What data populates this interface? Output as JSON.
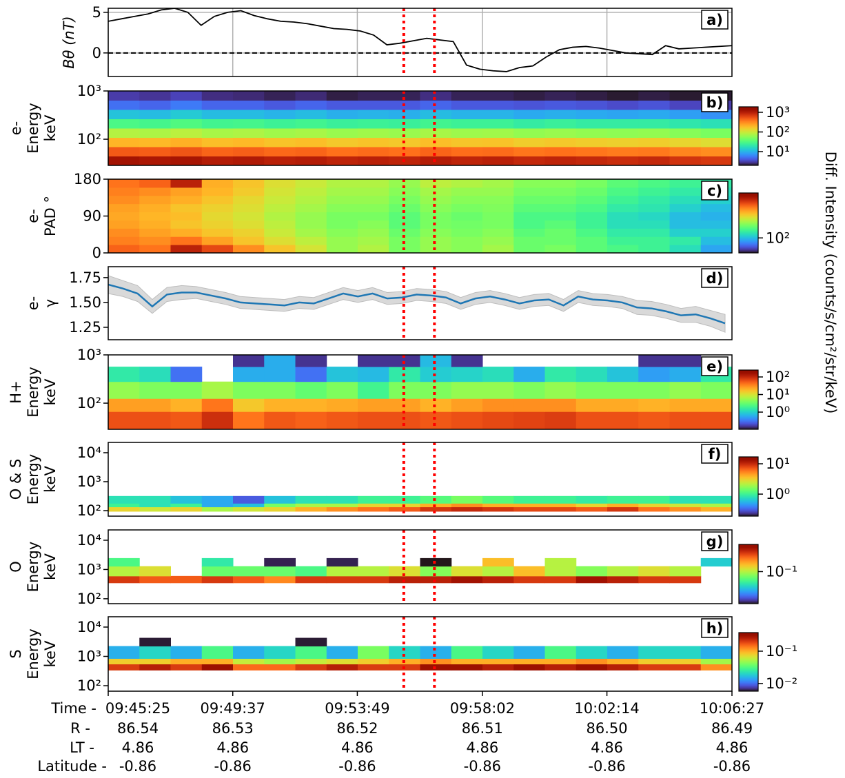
{
  "colorbar_label": "Diff. Intensity (counts/s/cm²/str/keV)",
  "chart_data": [
    {
      "type": "line",
      "panel_label": "a)",
      "ylabel": [
        "Bθ (nT)"
      ],
      "xlim": [
        "09:45:25",
        "10:06:27"
      ],
      "xticks": [
        "09:45:25",
        "09:49:37",
        "09:53:49",
        "09:58:02",
        "10:02:14",
        "10:06:27"
      ],
      "ylim": [
        -2.9,
        5.5
      ],
      "yticks": [
        0,
        5
      ],
      "grid": true,
      "hlines": [
        0
      ],
      "vlines": [
        "09:55:23",
        "09:56:25"
      ],
      "vline_color": "#ff0000",
      "color": "#000000",
      "values": [
        3.9,
        4.2,
        4.5,
        4.8,
        5.3,
        5.5,
        5.0,
        3.4,
        4.5,
        5.0,
        5.2,
        4.6,
        4.2,
        3.9,
        3.8,
        3.6,
        3.3,
        3.0,
        2.9,
        2.7,
        2.2,
        1.0,
        1.2,
        1.5,
        1.8,
        1.6,
        1.4,
        -1.5,
        -2.0,
        -2.2,
        -2.3,
        -1.8,
        -1.6,
        -0.5,
        0.4,
        0.7,
        0.8,
        0.6,
        0.3,
        0.0,
        -0.1,
        -0.2,
        0.9,
        0.5,
        0.6,
        0.7,
        0.8,
        0.9
      ]
    },
    {
      "type": "heatmap",
      "panel_label": "b)",
      "ylabel": [
        "e-",
        "Energy",
        "keV"
      ],
      "xlim": [
        "09:45:25",
        "10:06:27"
      ],
      "log_y": true,
      "ylim": [
        28.7,
        1000
      ],
      "yticks": [
        {
          "value": 100,
          "label": "10²"
        },
        {
          "value": 1000,
          "label": "10³"
        }
      ],
      "vlines": [
        "09:55:23",
        "09:56:25"
      ],
      "vline_color": "#ff0000",
      "ybins": [
        28.7,
        44.7,
        69.7,
        108.7,
        169.5,
        264,
        412,
        642,
        1000
      ],
      "values": [
        [
          1200,
          1100,
          1150,
          1000,
          1050,
          950,
          1000,
          900,
          950,
          900,
          1000,
          900,
          950,
          850,
          900,
          850,
          800,
          850,
          750,
          700
        ],
        [
          500,
          480,
          520,
          450,
          470,
          430,
          450,
          400,
          420,
          400,
          450,
          410,
          420,
          380,
          400,
          380,
          360,
          370,
          330,
          300
        ],
        [
          200,
          190,
          210,
          180,
          190,
          170,
          180,
          160,
          170,
          160,
          180,
          165,
          170,
          150,
          160,
          150,
          145,
          150,
          135,
          120
        ],
        [
          80,
          75,
          85,
          72,
          76,
          68,
          72,
          64,
          68,
          64,
          72,
          66,
          68,
          60,
          64,
          60,
          58,
          60,
          54,
          48
        ],
        [
          30,
          28,
          32,
          27,
          28,
          25,
          27,
          24,
          25,
          24,
          27,
          25,
          25,
          22,
          24,
          22,
          22,
          22,
          20,
          18
        ],
        [
          12,
          11,
          13,
          11,
          11,
          10,
          11,
          9.5,
          10,
          9.5,
          11,
          10,
          10,
          9,
          9.5,
          9,
          8.5,
          9,
          8,
          7
        ],
        [
          5,
          4.5,
          5.5,
          4.5,
          4.5,
          4,
          4.5,
          4,
          4,
          4,
          4.5,
          4,
          4,
          3.8,
          4,
          3.8,
          3.5,
          3.8,
          3.3,
          3
        ],
        [
          3,
          2.8,
          3.2,
          2.6,
          2.5,
          2.3,
          2.5,
          2.2,
          2.3,
          2.3,
          2.6,
          2.3,
          2.3,
          2.2,
          2.3,
          2.2,
          2.1,
          2.2,
          2.1,
          2.1
        ]
      ],
      "cmap": "turbo",
      "clim": [
        2,
        1900
      ],
      "cticks": [
        {
          "value": 10,
          "label": "10¹"
        },
        {
          "value": 100,
          "label": "10²"
        },
        {
          "value": 1000,
          "label": "10³"
        }
      ]
    },
    {
      "type": "heatmap",
      "panel_label": "c)",
      "ylabel": [
        "e-",
        "PAD °"
      ],
      "xlim": [
        "09:45:25",
        "10:06:27"
      ],
      "log_y": false,
      "ylim": [
        0,
        180
      ],
      "yticks": [
        0,
        90,
        180
      ],
      "vlines": [
        "09:55:23",
        "09:56:25"
      ],
      "vline_color": "#ff0000",
      "ybins": [
        0,
        20,
        40,
        60,
        80,
        100,
        120,
        140,
        160,
        180
      ],
      "values": [
        [
          450,
          420,
          600,
          500,
          380,
          300,
          250,
          200,
          220,
          180,
          200,
          190,
          210,
          170,
          180,
          160,
          150,
          140,
          120,
          90
        ],
        [
          400,
          380,
          420,
          350,
          300,
          260,
          230,
          200,
          210,
          180,
          200,
          190,
          200,
          170,
          170,
          160,
          140,
          140,
          130,
          100
        ],
        [
          380,
          350,
          330,
          300,
          280,
          240,
          210,
          190,
          200,
          170,
          190,
          180,
          190,
          160,
          170,
          150,
          130,
          130,
          110,
          110
        ],
        [
          350,
          330,
          300,
          280,
          260,
          230,
          200,
          180,
          190,
          160,
          180,
          175,
          180,
          150,
          160,
          140,
          120,
          120,
          100,
          100
        ],
        [
          340,
          320,
          310,
          270,
          250,
          220,
          200,
          180,
          180,
          160,
          180,
          170,
          180,
          150,
          150,
          140,
          120,
          115,
          100,
          95
        ],
        [
          350,
          330,
          300,
          280,
          260,
          230,
          210,
          190,
          190,
          170,
          190,
          180,
          185,
          160,
          160,
          150,
          130,
          125,
          110,
          100
        ],
        [
          380,
          350,
          330,
          300,
          270,
          240,
          220,
          200,
          200,
          180,
          200,
          190,
          190,
          170,
          170,
          160,
          140,
          130,
          120,
          110
        ],
        [
          400,
          380,
          350,
          320,
          290,
          250,
          230,
          210,
          210,
          190,
          210,
          200,
          200,
          180,
          180,
          170,
          150,
          140,
          130,
          120
        ],
        [
          420,
          450,
          600,
          330,
          300,
          260,
          240,
          220,
          220,
          200,
          230,
          220,
          210,
          190,
          190,
          180,
          160,
          150,
          140,
          130
        ]
      ],
      "cmap": "turbo",
      "clim": [
        50,
        800
      ],
      "cticks": [
        {
          "value": 100,
          "label": "10²"
        }
      ]
    },
    {
      "type": "band_line",
      "panel_label": "d)",
      "ylabel": [
        "e-",
        "γ"
      ],
      "xlim": [
        "09:45:25",
        "10:06:27"
      ],
      "ylim": [
        1.125,
        1.86
      ],
      "yticks": [
        1.25,
        {
          "value": 1.5,
          "label": "1.50"
        },
        1.75
      ],
      "vlines": [
        "09:55:23",
        "09:56:25"
      ],
      "vline_color": "#ff0000",
      "color": "#1f77b4",
      "band_color": "#d9d9d9",
      "values": [
        1.68,
        1.64,
        1.59,
        1.46,
        1.58,
        1.6,
        1.6,
        1.57,
        1.54,
        1.5,
        1.49,
        1.48,
        1.47,
        1.5,
        1.49,
        1.54,
        1.59,
        1.56,
        1.59,
        1.54,
        1.55,
        1.58,
        1.57,
        1.55,
        1.49,
        1.54,
        1.56,
        1.53,
        1.49,
        1.52,
        1.53,
        1.47,
        1.56,
        1.53,
        1.52,
        1.5,
        1.45,
        1.44,
        1.41,
        1.37,
        1.38,
        1.34,
        1.29
      ],
      "errors": [
        0.09,
        0.08,
        0.08,
        0.07,
        0.07,
        0.07,
        0.06,
        0.06,
        0.06,
        0.06,
        0.06,
        0.06,
        0.06,
        0.06,
        0.06,
        0.06,
        0.06,
        0.06,
        0.06,
        0.06,
        0.06,
        0.06,
        0.06,
        0.06,
        0.06,
        0.06,
        0.06,
        0.06,
        0.06,
        0.06,
        0.06,
        0.06,
        0.06,
        0.06,
        0.06,
        0.06,
        0.07,
        0.07,
        0.07,
        0.07,
        0.08,
        0.08,
        0.09
      ]
    },
    {
      "type": "heatmap",
      "panel_label": "e)",
      "ylabel": [
        "H+",
        "Energy",
        "keV"
      ],
      "xlim": [
        "09:45:25",
        "10:06:27"
      ],
      "log_y": true,
      "ylim": [
        28.7,
        1000
      ],
      "yticks": [
        {
          "value": 100,
          "label": "10²"
        },
        {
          "value": 1000,
          "label": "10³"
        }
      ],
      "vlines": [
        "09:55:23",
        "09:56:25"
      ],
      "vline_color": "#ff0000",
      "ybins": [
        28.7,
        67,
        125,
        280,
        570,
        1000
      ],
      "values": [
        [
          60,
          60,
          55,
          90,
          40,
          55,
          50,
          55,
          60,
          60,
          55,
          60,
          65,
          70,
          75,
          60,
          60,
          55,
          60,
          60
        ],
        [
          25,
          25,
          20,
          40,
          15,
          20,
          20,
          22,
          25,
          25,
          20,
          25,
          30,
          30,
          30,
          22,
          22,
          20,
          22,
          22
        ],
        [
          5,
          4,
          4,
          6,
          4,
          4,
          3,
          4,
          2,
          4,
          4,
          5,
          5,
          4,
          5,
          4,
          4,
          4,
          5,
          4
        ],
        [
          1.5,
          1.2,
          0.3,
          null,
          0.6,
          0.6,
          0.3,
          0.8,
          0.7,
          1.5,
          0.9,
          1,
          1.2,
          0.6,
          1.5,
          1.2,
          0.8,
          0.5,
          0.6,
          1.5
        ],
        [
          null,
          null,
          null,
          null,
          0.15,
          0.6,
          0.15,
          null,
          0.15,
          0.15,
          0.7,
          0.15,
          null,
          null,
          null,
          null,
          null,
          0.15,
          0.15,
          null
        ]
      ],
      "cmap": "turbo",
      "clim": [
        0.105,
        247
      ],
      "cticks": [
        {
          "value": 1,
          "label": "10⁰"
        },
        {
          "value": 10,
          "label": "10¹"
        },
        {
          "value": 100,
          "label": "10²"
        }
      ]
    },
    {
      "type": "heatmap",
      "panel_label": "f)",
      "ylabel": [
        "O & S",
        "Energy",
        "keV"
      ],
      "xlim": [
        "09:45:25",
        "10:06:27"
      ],
      "log_y": true,
      "ylim": [
        64.6,
        22700
      ],
      "yticks": [
        {
          "value": 100,
          "label": "10²"
        },
        {
          "value": 1000,
          "label": "10³"
        },
        {
          "value": 10000,
          "label": "10⁴"
        }
      ],
      "vlines": [
        "09:55:23",
        "09:56:25"
      ],
      "vline_color": "#ff0000",
      "ybins": [
        95,
        135,
        180,
        320
      ],
      "values": [
        [
          3,
          2.5,
          3,
          2,
          2.5,
          3,
          4,
          5,
          6,
          7,
          9,
          10,
          9,
          8,
          8,
          7,
          9,
          6,
          5,
          4
        ],
        [
          1,
          0.8,
          1,
          0.5,
          0.6,
          1.5,
          2,
          2,
          3,
          3,
          4,
          5,
          4,
          4,
          4,
          3,
          4,
          3,
          2.5,
          2
        ],
        [
          0.8,
          0.8,
          0.6,
          0.5,
          0.3,
          0.6,
          0.8,
          0.8,
          1,
          1,
          1.2,
          1.5,
          1.2,
          1,
          1,
          0.9,
          1,
          1,
          0.8,
          0.8
        ]
      ],
      "cmap": "turbo",
      "clim": [
        0.188,
        16.9
      ],
      "cticks": [
        {
          "value": 1,
          "label": "10⁰"
        },
        {
          "value": 10,
          "label": "10¹"
        }
      ]
    },
    {
      "type": "heatmap",
      "panel_label": "g)",
      "ylabel": [
        "O",
        "Energy",
        "keV"
      ],
      "xlim": [
        "09:45:25",
        "10:06:27"
      ],
      "log_y": true,
      "ylim": [
        68,
        22500
      ],
      "yticks": [
        {
          "value": 100,
          "label": "10²"
        },
        {
          "value": 1000,
          "label": "10³"
        },
        {
          "value": 10000,
          "label": "10⁴"
        }
      ],
      "vlines": [
        "09:55:23",
        "09:56:25"
      ],
      "vline_color": "#ff0000",
      "ybins": [
        350,
        600,
        1300,
        2450
      ],
      "values": [
        [
          0.3,
          0.25,
          0.25,
          0.3,
          0.25,
          0.2,
          0.3,
          0.3,
          0.3,
          0.35,
          0.35,
          0.4,
          0.35,
          0.3,
          0.3,
          0.4,
          0.35,
          0.3,
          0.3,
          null
        ],
        [
          0.1,
          0.12,
          null,
          0.07,
          0.07,
          0.07,
          0.06,
          0.1,
          0.1,
          0.12,
          0.08,
          0.12,
          0.1,
          0.15,
          0.1,
          0.08,
          0.1,
          0.12,
          0.1,
          null
        ],
        [
          0.06,
          null,
          null,
          0.05,
          null,
          0.016,
          null,
          0.016,
          null,
          null,
          0.015,
          null,
          0.15,
          null,
          0.1,
          null,
          null,
          null,
          null,
          0.04
        ]
      ],
      "cmap": "turbo",
      "clim": [
        0.015,
        0.5
      ],
      "cticks": [
        {
          "value": 0.1,
          "label": "10⁻¹"
        }
      ]
    },
    {
      "type": "heatmap",
      "panel_label": "h)",
      "ylabel": [
        "S",
        "Energy",
        "keV"
      ],
      "xlim": [
        "09:45:25",
        "10:06:27"
      ],
      "log_y": true,
      "ylim": [
        65,
        22500
      ],
      "yticks": [
        {
          "value": 100,
          "label": "10²"
        },
        {
          "value": 1000,
          "label": "10³"
        },
        {
          "value": 10000,
          "label": "10⁴"
        }
      ],
      "vlines": [
        "09:55:23",
        "09:56:25"
      ],
      "vline_color": "#ff0000",
      "ybins": [
        340,
        550,
        850,
        2250,
        4300
      ],
      "values": [
        [
          0.2,
          0.25,
          0.2,
          0.3,
          0.15,
          0.15,
          0.2,
          0.25,
          0.2,
          0.2,
          0.3,
          0.3,
          0.25,
          0.3,
          0.25,
          0.3,
          0.25,
          0.2,
          0.2,
          0.12
        ],
        [
          0.08,
          0.08,
          0.1,
          0.1,
          0.06,
          0.05,
          0.06,
          0.07,
          0.08,
          0.1,
          0.12,
          0.1,
          0.1,
          0.1,
          0.1,
          0.12,
          0.1,
          0.08,
          0.08,
          0.05
        ],
        [
          0.015,
          0.02,
          0.015,
          0.03,
          0.015,
          0.02,
          0.03,
          0.015,
          0.04,
          0.02,
          0.015,
          0.03,
          0.02,
          0.015,
          0.03,
          0.02,
          0.015,
          0.02,
          0.02,
          0.015
        ],
        [
          null,
          0.006,
          null,
          null,
          null,
          null,
          0.006,
          null,
          null,
          null,
          null,
          null,
          null,
          null,
          null,
          null,
          null,
          null,
          null,
          null
        ]
      ],
      "cmap": "turbo",
      "clim": [
        0.0058,
        0.375
      ],
      "cticks": [
        {
          "value": 0.01,
          "label": "10⁻²"
        },
        {
          "value": 0.1,
          "label": "10⁻¹"
        }
      ],
      "xlabel": "Time -",
      "xticks": [
        "09:45:25",
        "09:49:37",
        "09:53:49",
        "09:58:02",
        "10:02:14",
        "10:06:27"
      ],
      "x_rows": [
        {
          "name": "R -",
          "values": [
            86.54,
            86.53,
            86.52,
            86.51,
            {
              "value": 86.5,
              "label": "86.50"
            },
            86.49
          ]
        },
        {
          "name": "LT -",
          "values": [
            4.86,
            4.86,
            4.86,
            4.86,
            4.86,
            4.86
          ]
        },
        {
          "name": "Latitude -",
          "values": [
            -0.86,
            -0.86,
            -0.86,
            -0.86,
            -0.86,
            -0.86
          ]
        }
      ]
    }
  ]
}
